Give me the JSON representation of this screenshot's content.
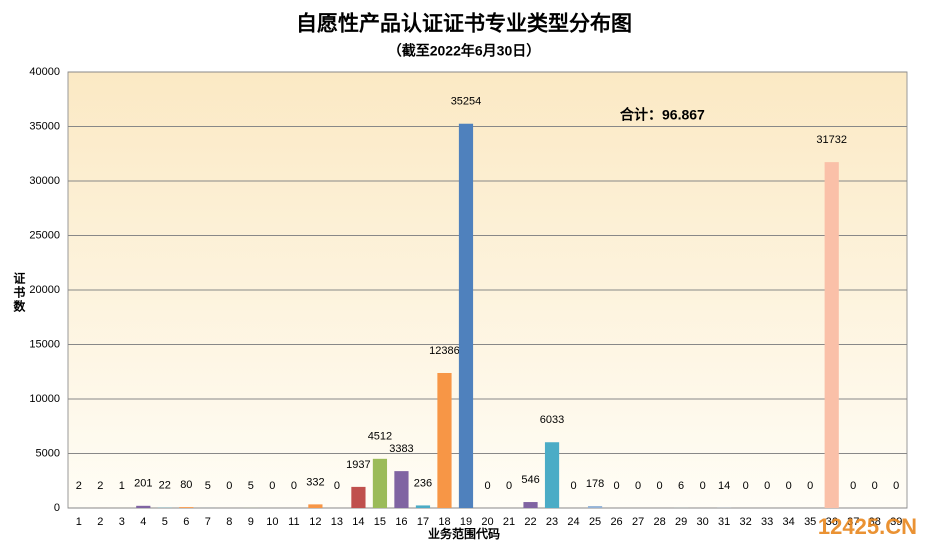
{
  "chart_data": {
    "type": "bar",
    "title": "自愿性产品认证证书专业类型分布图",
    "subtitle": "（截至2022年6月30日）",
    "annotation": "合计：96.867",
    "watermark": "12425.CN",
    "x_label": "业务范围代码",
    "y_label": "证书数",
    "categories": [
      "1",
      "2",
      "3",
      "4",
      "5",
      "6",
      "7",
      "8",
      "9",
      "10",
      "11",
      "12",
      "13",
      "14",
      "15",
      "16",
      "17",
      "18",
      "19",
      "20",
      "21",
      "22",
      "23",
      "24",
      "25",
      "26",
      "27",
      "28",
      "29",
      "30",
      "31",
      "32",
      "33",
      "34",
      "35",
      "36",
      "37",
      "38",
      "39"
    ],
    "values": [
      2,
      2,
      1,
      201,
      22,
      80,
      5,
      0,
      5,
      0,
      0,
      332,
      0,
      1937,
      4512,
      3383,
      236,
      12386,
      35254,
      0,
      0,
      546,
      6033,
      0,
      178,
      0,
      0,
      0,
      6,
      0,
      14,
      0,
      0,
      0,
      0,
      31732,
      0,
      0,
      0
    ],
    "colors": [
      "#4f81bd",
      "#c0504d",
      "#9bbb59",
      "#8064a2",
      "#4bacc6",
      "#f79646",
      "#4f81bd",
      "#c0504d",
      "#9bbb59",
      "#8064a2",
      "#4bacc6",
      "#f79646",
      "#4f81bd",
      "#c0504d",
      "#9bbb59",
      "#8064a2",
      "#4bacc6",
      "#f79646",
      "#4f81bd",
      "#c0504d",
      "#9bbb59",
      "#8064a2",
      "#4bacc6",
      "#f79646",
      "#95b3d7",
      "#d99694",
      "#c3d69b",
      "#b3a2c7",
      "#93cddd",
      "#fac090",
      "#95b3d7",
      "#d99694",
      "#c3d69b",
      "#b3a2c7",
      "#93cddd",
      "#fac0a8",
      "#95b3d7",
      "#d99694",
      "#c3d69b"
    ],
    "ylim": [
      0,
      40000
    ],
    "yticks": [
      0,
      5000,
      10000,
      15000,
      20000,
      25000,
      30000,
      35000,
      40000
    ],
    "grid": true
  }
}
